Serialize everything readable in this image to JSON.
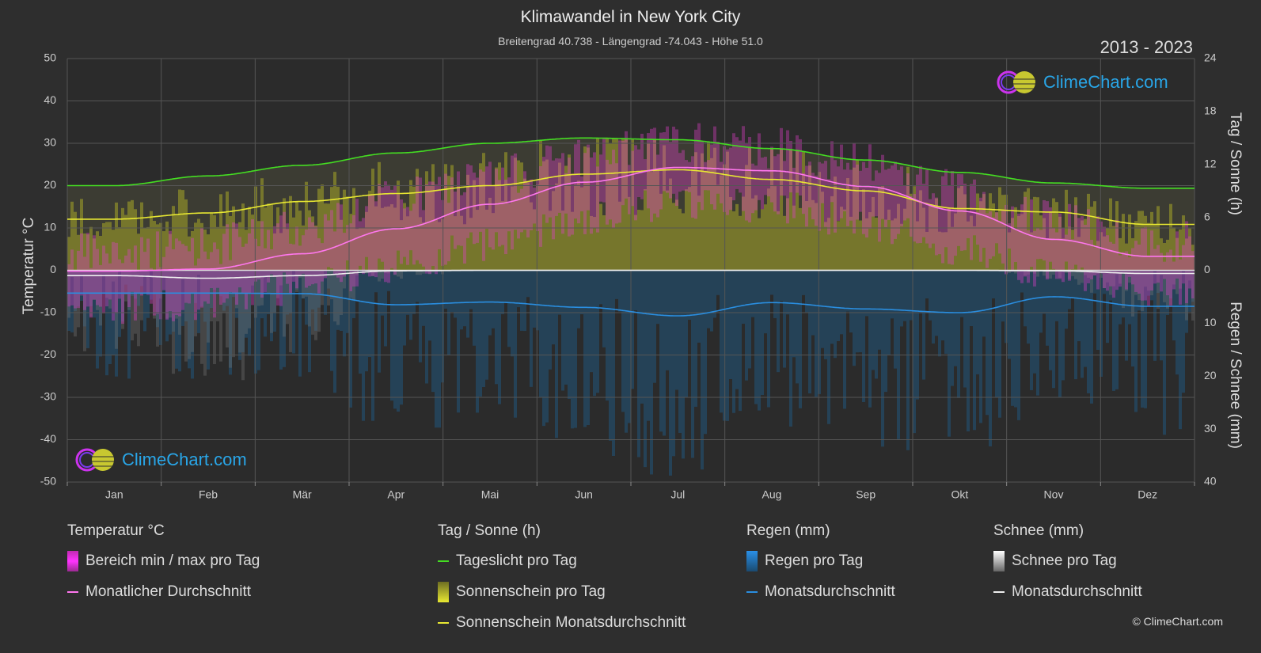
{
  "title": "Klimawandel in New York City",
  "subtitle": "Breitengrad 40.738 - Längengrad -74.043 - Höhe 51.0",
  "period": "2013 - 2023",
  "axes": {
    "left_title": "Temperatur °C",
    "right_top_title": "Tag / Sonne (h)",
    "right_bottom_title": "Regen / Schnee (mm)"
  },
  "logo_text": "ClimeChart.com",
  "copyright": "© ClimeChart.com",
  "legend": {
    "temp": {
      "title": "Temperatur °C",
      "range": "Bereich min / max pro Tag",
      "avg": "Monatlicher Durchschnitt"
    },
    "sun": {
      "title": "Tag / Sonne (h)",
      "daylight": "Tageslicht pro Tag",
      "sunshine": "Sonnenschein pro Tag",
      "sunshine_avg": "Sonnenschein Monatsdurchschnitt"
    },
    "rain": {
      "title": "Regen (mm)",
      "daily": "Regen pro Tag",
      "avg": "Monatsdurchschnitt"
    },
    "snow": {
      "title": "Schnee (mm)",
      "daily": "Schnee pro Tag",
      "avg": "Monatsdurchschnitt"
    }
  },
  "colors": {
    "daylight": "#44dd22",
    "sunshine_avg": "#e8e832",
    "temp_avg": "#ff77ee",
    "rain_avg": "#2a8ee0",
    "snow_avg": "#eeeeee",
    "temp_range": "#e040c8",
    "sunshine_fill": "#8e8e2a",
    "rain_fill": "#1f5f8f",
    "snow_fill": "#777777"
  },
  "chart_data": {
    "type": "line",
    "categories": [
      "Jan",
      "Feb",
      "Mär",
      "Apr",
      "Mai",
      "Jun",
      "Jul",
      "Aug",
      "Sep",
      "Okt",
      "Nov",
      "Dez"
    ],
    "left_axis": {
      "label": "Temperatur °C",
      "ylim": [
        -50,
        50
      ],
      "ticks": [
        50,
        40,
        30,
        20,
        10,
        0,
        -10,
        -20,
        -30,
        -40,
        -50
      ]
    },
    "right_axis_top": {
      "label": "Tag / Sonne (h)",
      "ylim": [
        0,
        24
      ],
      "ticks": [
        24,
        18,
        12,
        6,
        0
      ]
    },
    "right_axis_bottom": {
      "label": "Regen / Schnee (mm)",
      "ylim": [
        0,
        40
      ],
      "ticks": [
        0,
        10,
        20,
        30,
        40
      ]
    },
    "grid": true,
    "series": [
      {
        "name": "Tageslicht pro Tag",
        "axis": "hours",
        "values": [
          9.6,
          10.7,
          11.9,
          13.3,
          14.4,
          15.0,
          14.8,
          13.8,
          12.5,
          11.1,
          9.9,
          9.3
        ]
      },
      {
        "name": "Sonnenschein Monatsdurchschnitt",
        "axis": "hours",
        "values": [
          5.8,
          6.5,
          7.8,
          8.7,
          9.6,
          10.9,
          11.4,
          10.3,
          9.0,
          7.0,
          6.6,
          5.2
        ]
      },
      {
        "name": "Monatlicher Durchschnitt",
        "axis": "temp",
        "values": [
          -0.2,
          0.3,
          3.9,
          9.8,
          15.6,
          20.8,
          24.3,
          23.5,
          19.8,
          14.0,
          7.3,
          3.3
        ]
      },
      {
        "name": "Regen Monatsdurchschnitt",
        "axis": "precip_mm",
        "values": [
          4.3,
          4.3,
          4.4,
          6.5,
          6.0,
          7.0,
          8.6,
          6.1,
          7.3,
          8.0,
          5.0,
          6.8
        ]
      },
      {
        "name": "Schnee Monatsdurchschnitt",
        "axis": "precip_mm",
        "values": [
          1.0,
          1.5,
          1.0,
          0.1,
          0.0,
          0.0,
          0.0,
          0.0,
          0.0,
          0.0,
          0.1,
          0.6
        ]
      },
      {
        "name": "Bereich max pro Tag",
        "axis": "temp",
        "values": [
          4,
          6,
          10,
          17,
          22,
          27,
          30,
          29,
          25,
          19,
          12,
          7
        ]
      },
      {
        "name": "Bereich min pro Tag",
        "axis": "temp",
        "values": [
          -5,
          -4,
          0,
          5,
          10,
          16,
          20,
          19,
          15,
          9,
          3,
          -1
        ]
      },
      {
        "name": "Sonnenschein pro Tag",
        "axis": "hours",
        "values": [
          5.8,
          6.5,
          7.8,
          8.7,
          9.6,
          10.9,
          11.4,
          10.3,
          9.0,
          7.0,
          6.6,
          5.2
        ]
      }
    ]
  }
}
